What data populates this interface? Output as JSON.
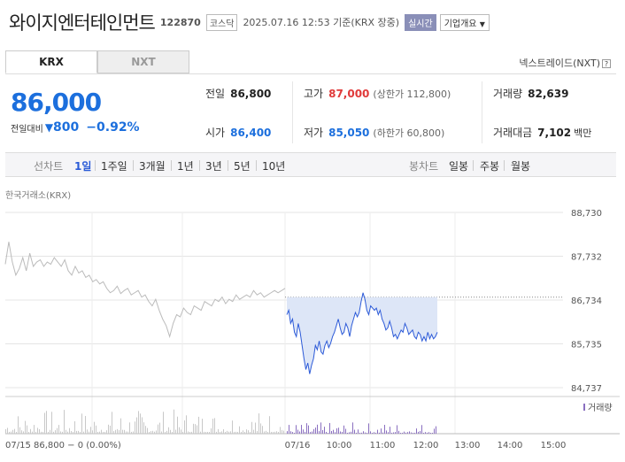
{
  "header": {
    "stock_name": "와이지엔터테인먼트",
    "stock_code": "122870",
    "market": "코스닥",
    "as_of": "2025.07.16 12:53 기준(KRX 장중)",
    "realtime_label": "실시간",
    "company_overview_label": "기업개요"
  },
  "tabs": [
    {
      "label": "KRX",
      "active": true
    },
    {
      "label": "NXT",
      "active": false
    }
  ],
  "nxt_link": {
    "label": "넥스트레이드(NXT)",
    "help": "?"
  },
  "quote": {
    "price": "86,000",
    "change_label": "전일대비",
    "change_arrow": "▼",
    "change_amount": "800",
    "change_pct": "−0.92%"
  },
  "stats": {
    "prev_close": {
      "label": "전일",
      "value": "86,800"
    },
    "high": {
      "label": "고가",
      "value": "87,000",
      "extra": "(상한가 112,800)"
    },
    "volume": {
      "label": "거래량",
      "value": "82,639"
    },
    "open": {
      "label": "시가",
      "value": "86,400"
    },
    "low": {
      "label": "저가",
      "value": "85,050",
      "extra": "(하한가 60,800)"
    },
    "trade_value": {
      "label": "거래대금",
      "value": "7,102",
      "unit": "백만"
    }
  },
  "period_bar": {
    "line_label": "선차트",
    "line_periods": [
      {
        "label": "1일",
        "selected": true
      },
      {
        "label": "1주일",
        "selected": false
      },
      {
        "label": "3개월",
        "selected": false
      },
      {
        "label": "1년",
        "selected": false
      },
      {
        "label": "3년",
        "selected": false
      },
      {
        "label": "5년",
        "selected": false
      },
      {
        "label": "10년",
        "selected": false
      }
    ],
    "candle_label": "봉차트",
    "candle_periods": [
      {
        "label": "일봉"
      },
      {
        "label": "주봉"
      },
      {
        "label": "월봉"
      }
    ]
  },
  "chart_source": "한국거래소(KRX)",
  "chart_data": {
    "type": "line",
    "y_ticks": [
      "88,730",
      "87,732",
      "86,734",
      "85,735",
      "84,737"
    ],
    "ylim": [
      84737,
      88730
    ],
    "x_ticks": [
      "07/16",
      "10:00",
      "11:00",
      "12:00",
      "13:00",
      "14:00",
      "15:00"
    ],
    "prev_close": 86800,
    "prev_day_label": "07/15 86,800 − 0 (0.00%)",
    "volume_legend": "거래량",
    "series": [
      {
        "values": [
          87550,
          88060,
          87600,
          87300,
          87450,
          87700,
          87400,
          87800,
          87500,
          87600,
          87650,
          87500,
          87600,
          87550,
          87700,
          87600,
          87500,
          87650,
          87400,
          87300,
          87500,
          87350,
          87400,
          87250,
          87300,
          87150,
          87200,
          87100,
          87150,
          87000,
          86900,
          86950,
          87050,
          86880,
          86950,
          87000,
          86850,
          86900,
          86950,
          86800,
          86850,
          86700,
          86600,
          86750,
          86500,
          86300,
          86150,
          85900,
          86200,
          86400,
          86350,
          86550,
          86450,
          86400,
          86600,
          86550,
          86500,
          86700,
          86650,
          86600,
          86750,
          86700,
          86800,
          86650,
          86750,
          86700,
          86850,
          86750,
          86800,
          86850,
          86800,
          86950,
          86850,
          86900,
          86800,
          86850,
          86900,
          86950,
          86900,
          86950,
          87000
        ]
      },
      {
        "values": [
          86400,
          86500,
          86200,
          86300,
          86000,
          85900,
          86200,
          86000,
          85700,
          85400,
          85150,
          85300,
          85050,
          85250,
          85400,
          85700,
          85600,
          85800,
          85550,
          85500,
          85700,
          85800,
          85650,
          85750,
          85900,
          86000,
          86150,
          86300,
          86100,
          85950,
          86000,
          86200,
          86100,
          85900,
          86150,
          86300,
          86450,
          86350,
          86450,
          86700,
          86900,
          86750,
          86500,
          86400,
          86600,
          86550,
          86500,
          86550,
          86400,
          86500,
          86300,
          86200,
          86050,
          86100,
          86250,
          86100,
          85900,
          85950,
          85850,
          85950,
          86050,
          86000,
          86200,
          86100,
          85950,
          86000,
          86050,
          85900,
          85850,
          86000,
          85950,
          85800,
          85900,
          85800,
          86000,
          85850,
          85950,
          85850,
          85900,
          86000
        ]
      }
    ]
  },
  "colors": {
    "blue": "#1c6fdd",
    "red": "#e03a3a",
    "prev_day_line": "#bbbbbb",
    "today_line": "#2d5bd8",
    "today_fill": "#dde6f7",
    "volume_prev": "#c8c8c8",
    "volume_today": "#8a6fc0"
  },
  "icons": {
    "change_arrow": "triangle-down-icon",
    "help": "question-icon"
  }
}
